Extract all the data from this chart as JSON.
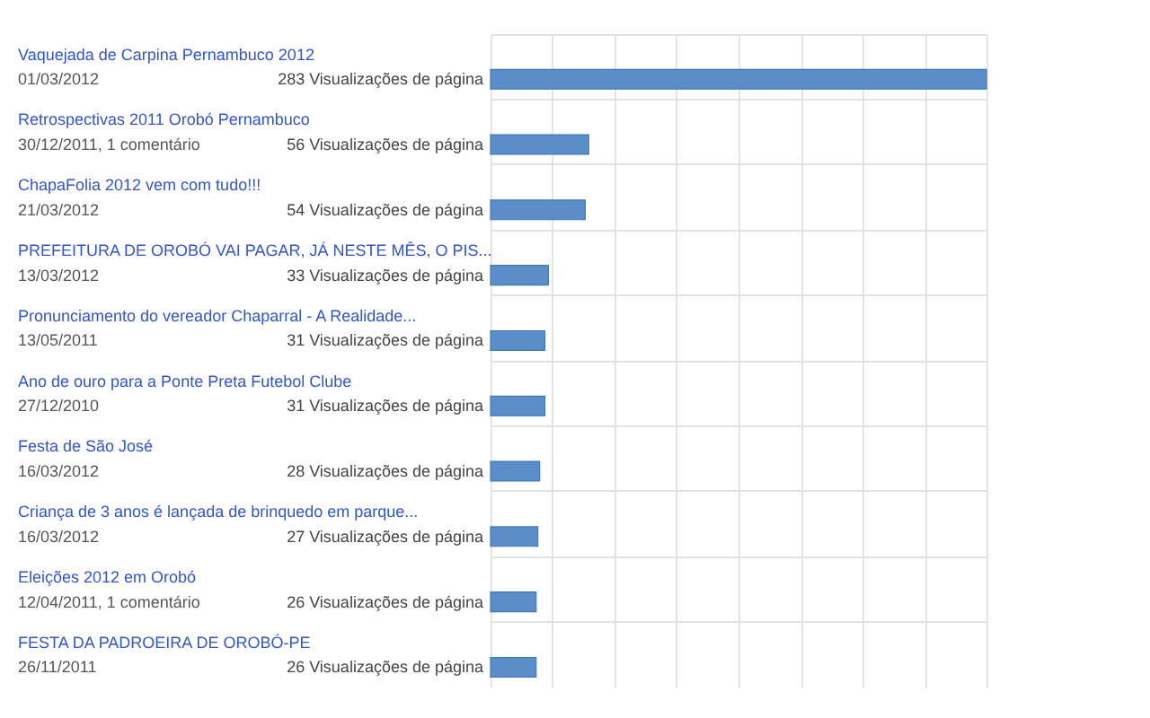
{
  "chart_data": {
    "type": "bar",
    "orientation": "horizontal",
    "color": "#5b8ec9",
    "categories": [
      "Vaquejada de Carpina Pernambuco 2012",
      "Retrospectivas 2011 Orobó Pernambuco",
      "ChapaFolia 2012 vem com tudo!!!",
      "PREFEITURA DE OROBÓ VAI PAGAR, JÁ NESTE MÊS, O PIS...",
      "Pronunciamento do vereador Chaparral - A Realidade...",
      "Ano de ouro para a Ponte Preta Futebol Clube",
      "Festa de São José",
      "Criança de 3 anos é lançada de brinquedo em parque...",
      "Eleições 2012 em Orobó",
      "FESTA DA PADROEIRA DE OROBÓ-PE"
    ],
    "values": [
      283,
      56,
      54,
      33,
      31,
      31,
      28,
      27,
      26,
      26
    ],
    "value_labels": [
      "283 Visualizações de página",
      "56 Visualizações de página",
      "54 Visualizações de página",
      "33 Visualizações de página",
      "31 Visualizações de página",
      "31 Visualizações de página",
      "28 Visualizações de página",
      "27 Visualizações de página",
      "26 Visualizações de página",
      "26 Visualizações de página"
    ],
    "annotations": [
      "01/03/2012",
      "30/12/2011, 1 comentário",
      "21/03/2012",
      "13/03/2012",
      "13/05/2011",
      "27/12/2010",
      "16/03/2012",
      "16/03/2012",
      "12/04/2011, 1 comentário",
      "26/11/2011"
    ],
    "xlim": [
      0,
      283
    ],
    "xticks": [
      {
        "value": 0,
        "label": null
      },
      {
        "value": 35,
        "label": null
      },
      {
        "value": 71,
        "label": null
      },
      {
        "value": 106,
        "label": null
      },
      {
        "value": 142,
        "label": null
      },
      {
        "value": 177,
        "label": null
      },
      {
        "value": 212,
        "label": null
      },
      {
        "value": 248,
        "label": null
      },
      {
        "value": 283,
        "label": null
      }
    ],
    "grid": true
  }
}
